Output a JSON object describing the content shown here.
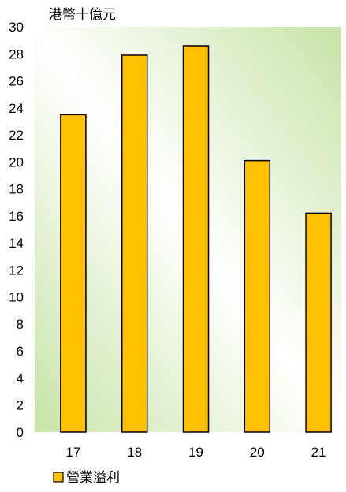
{
  "chart_data": {
    "type": "bar",
    "unit_label": "港幣十億元",
    "categories": [
      "17",
      "18",
      "19",
      "20",
      "21"
    ],
    "series": [
      {
        "name": "營業溢利",
        "values": [
          23.5,
          27.9,
          28.6,
          20.1,
          16.2
        ]
      }
    ],
    "ylim": [
      0,
      30
    ],
    "yticks": [
      0,
      2,
      4,
      6,
      8,
      10,
      12,
      14,
      16,
      18,
      20,
      22,
      24,
      26,
      28,
      30
    ],
    "grid": false,
    "legend_position": "bottom-left",
    "colors": {
      "bar_fill": "#ffc000",
      "bar_stroke": "#000000",
      "plot_gradient_light": "#ffffff",
      "plot_gradient_dark": "#c7e3a6"
    }
  }
}
